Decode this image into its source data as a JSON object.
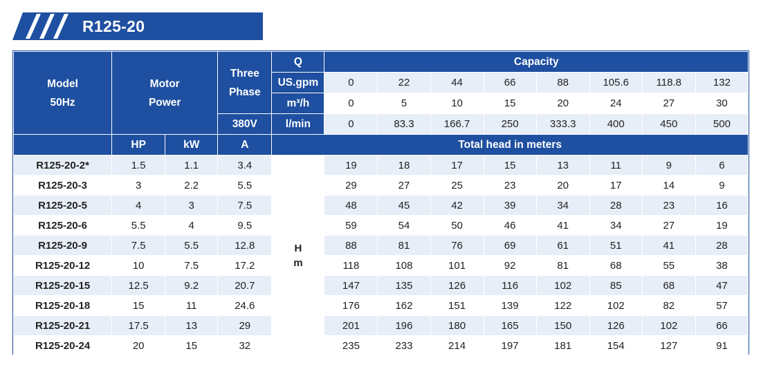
{
  "title": "R125-20",
  "colors": {
    "header_blue": "#1e4fa0",
    "row_alt": "#e7eef8"
  },
  "header": {
    "model": [
      "Model",
      "50Hz"
    ],
    "motor_power": [
      "Motor",
      "Power"
    ],
    "three_phase": [
      "Three",
      "Phase"
    ],
    "voltage": "380V",
    "q": "Q",
    "capacity": "Capacity",
    "unit_usgpm": "US.gpm",
    "unit_m3h": "m³/h",
    "unit_lmin": "l/min",
    "hp": "HP",
    "kw": "kW",
    "amp": "A",
    "total_head": "Total head in meters",
    "head_unit": [
      "H",
      "m"
    ]
  },
  "flow_usgpm": [
    "0",
    "22",
    "44",
    "66",
    "88",
    "105.6",
    "118.8",
    "132"
  ],
  "flow_m3h": [
    "0",
    "5",
    "10",
    "15",
    "20",
    "24",
    "27",
    "30"
  ],
  "flow_lmin": [
    "0",
    "83.3",
    "166.7",
    "250",
    "333.3",
    "400",
    "450",
    "500"
  ],
  "rows": [
    {
      "model": "R125-20-2*",
      "hp": "1.5",
      "kw": "1.1",
      "amp": "3.4",
      "head": [
        "19",
        "18",
        "17",
        "15",
        "13",
        "11",
        "9",
        "6"
      ]
    },
    {
      "model": "R125-20-3",
      "hp": "3",
      "kw": "2.2",
      "amp": "5.5",
      "head": [
        "29",
        "27",
        "25",
        "23",
        "20",
        "17",
        "14",
        "9"
      ]
    },
    {
      "model": "R125-20-5",
      "hp": "4",
      "kw": "3",
      "amp": "7.5",
      "head": [
        "48",
        "45",
        "42",
        "39",
        "34",
        "28",
        "23",
        "16"
      ]
    },
    {
      "model": "R125-20-6",
      "hp": "5.5",
      "kw": "4",
      "amp": "9.5",
      "head": [
        "59",
        "54",
        "50",
        "46",
        "41",
        "34",
        "27",
        "19"
      ]
    },
    {
      "model": "R125-20-9",
      "hp": "7.5",
      "kw": "5.5",
      "amp": "12.8",
      "head": [
        "88",
        "81",
        "76",
        "69",
        "61",
        "51",
        "41",
        "28"
      ]
    },
    {
      "model": "R125-20-12",
      "hp": "10",
      "kw": "7.5",
      "amp": "17.2",
      "head": [
        "118",
        "108",
        "101",
        "92",
        "81",
        "68",
        "55",
        "38"
      ]
    },
    {
      "model": "R125-20-15",
      "hp": "12.5",
      "kw": "9.2",
      "amp": "20.7",
      "head": [
        "147",
        "135",
        "126",
        "116",
        "102",
        "85",
        "68",
        "47"
      ]
    },
    {
      "model": "R125-20-18",
      "hp": "15",
      "kw": "11",
      "amp": "24.6",
      "head": [
        "176",
        "162",
        "151",
        "139",
        "122",
        "102",
        "82",
        "57"
      ]
    },
    {
      "model": "R125-20-21",
      "hp": "17.5",
      "kw": "13",
      "amp": "29",
      "head": [
        "201",
        "196",
        "180",
        "165",
        "150",
        "126",
        "102",
        "66"
      ]
    },
    {
      "model": "R125-20-24",
      "hp": "20",
      "kw": "15",
      "amp": "32",
      "head": [
        "235",
        "233",
        "214",
        "197",
        "181",
        "154",
        "127",
        "91"
      ]
    }
  ]
}
